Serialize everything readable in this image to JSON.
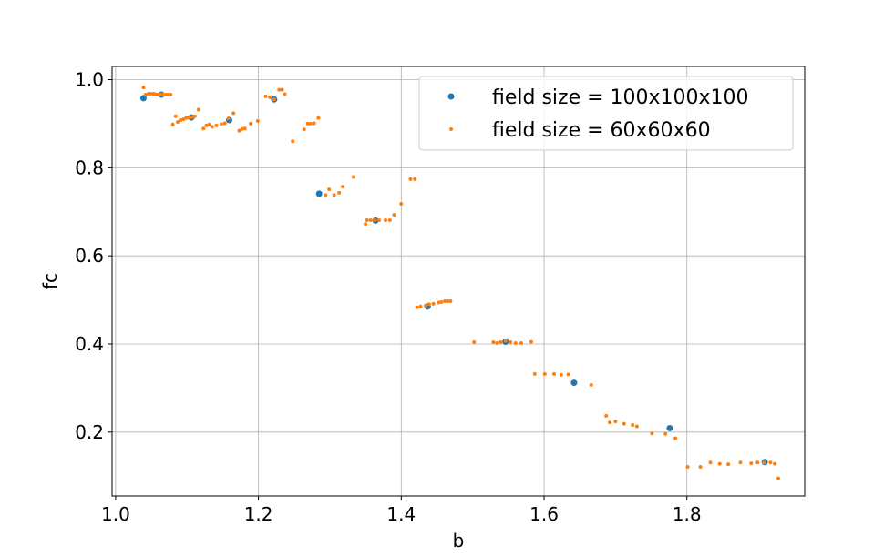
{
  "chart_data": {
    "type": "scatter",
    "xlabel": "b",
    "ylabel": "fc",
    "xlim": [
      0.995,
      1.965
    ],
    "ylim": [
      0.055,
      1.03
    ],
    "xticks": [
      1.0,
      1.2,
      1.4,
      1.6,
      1.8
    ],
    "xtick_labels": [
      "1.0",
      "1.2",
      "1.4",
      "1.6",
      "1.8"
    ],
    "yticks": [
      0.2,
      0.4,
      0.6,
      0.8,
      1.0
    ],
    "ytick_labels": [
      "0.2",
      "0.4",
      "0.6",
      "0.8",
      "1.0"
    ],
    "grid": true,
    "legend_position": "top-right",
    "series": [
      {
        "name": "field size = 100x100x100",
        "color": "#1f77b4",
        "x": [
          1.039,
          1.064,
          1.106,
          1.159,
          1.222,
          1.285,
          1.364,
          1.437,
          1.546,
          1.642,
          1.776,
          1.909
        ],
        "y": [
          0.958,
          0.966,
          0.914,
          0.908,
          0.955,
          0.741,
          0.68,
          0.485,
          0.405,
          0.312,
          0.209,
          0.132
        ]
      },
      {
        "name": "field size = 60x60x60",
        "color": "#ff7f0e",
        "x": [
          1.039,
          1.042,
          1.046,
          1.049,
          1.053,
          1.056,
          1.059,
          1.063,
          1.066,
          1.07,
          1.073,
          1.077,
          1.08,
          1.084,
          1.087,
          1.091,
          1.095,
          1.099,
          1.103,
          1.107,
          1.111,
          1.116,
          1.123,
          1.127,
          1.131,
          1.135,
          1.141,
          1.148,
          1.153,
          1.158,
          1.165,
          1.173,
          1.177,
          1.181,
          1.189,
          1.199,
          1.21,
          1.216,
          1.222,
          1.229,
          1.233,
          1.237,
          1.248,
          1.264,
          1.269,
          1.273,
          1.278,
          1.284,
          1.294,
          1.299,
          1.306,
          1.313,
          1.318,
          1.333,
          1.35,
          1.352,
          1.357,
          1.363,
          1.369,
          1.378,
          1.384,
          1.39,
          1.4,
          1.413,
          1.419,
          1.422,
          1.427,
          1.434,
          1.439,
          1.445,
          1.452,
          1.456,
          1.461,
          1.465,
          1.469,
          1.502,
          1.529,
          1.534,
          1.539,
          1.546,
          1.553,
          1.56,
          1.568,
          1.582,
          1.587,
          1.601,
          1.614,
          1.624,
          1.634,
          1.666,
          1.687,
          1.692,
          1.7,
          1.712,
          1.724,
          1.73,
          1.751,
          1.77,
          1.784,
          1.801,
          1.819,
          1.833,
          1.846,
          1.858,
          1.875,
          1.89,
          1.899,
          1.908,
          1.917,
          1.923,
          1.928
        ],
        "y": [
          0.982,
          0.966,
          0.968,
          0.968,
          0.968,
          0.967,
          0.966,
          0.967,
          0.966,
          0.966,
          0.966,
          0.966,
          0.898,
          0.917,
          0.904,
          0.908,
          0.91,
          0.913,
          0.914,
          0.915,
          0.917,
          0.932,
          0.889,
          0.896,
          0.898,
          0.893,
          0.896,
          0.899,
          0.901,
          0.912,
          0.924,
          0.884,
          0.888,
          0.889,
          0.9,
          0.906,
          0.962,
          0.96,
          0.955,
          0.977,
          0.977,
          0.967,
          0.86,
          0.887,
          0.9,
          0.9,
          0.901,
          0.913,
          0.738,
          0.751,
          0.738,
          0.743,
          0.757,
          0.779,
          0.672,
          0.681,
          0.681,
          0.681,
          0.681,
          0.681,
          0.681,
          0.693,
          0.718,
          0.774,
          0.774,
          0.483,
          0.485,
          0.487,
          0.49,
          0.491,
          0.494,
          0.495,
          0.497,
          0.497,
          0.497,
          0.404,
          0.404,
          0.402,
          0.404,
          0.407,
          0.404,
          0.402,
          0.402,
          0.405,
          0.332,
          0.332,
          0.332,
          0.33,
          0.331,
          0.307,
          0.237,
          0.222,
          0.224,
          0.219,
          0.216,
          0.213,
          0.197,
          0.196,
          0.186,
          0.121,
          0.121,
          0.131,
          0.128,
          0.127,
          0.131,
          0.129,
          0.131,
          0.131,
          0.131,
          0.128,
          0.095
        ]
      }
    ]
  }
}
